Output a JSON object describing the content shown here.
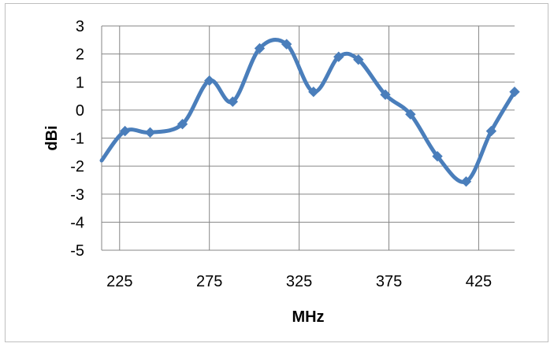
{
  "chart_data": {
    "type": "line",
    "title": "",
    "xlabel": "MHz",
    "ylabel": "dBi",
    "xlim": [
      215,
      445
    ],
    "ylim": [
      -5,
      3
    ],
    "x_ticks": [
      225,
      275,
      325,
      375,
      425
    ],
    "y_ticks": [
      3,
      2,
      1,
      0,
      -1,
      -2,
      -3,
      -4,
      -5
    ],
    "grid": "horizontal and vertical",
    "legend": "none",
    "smoothed": true,
    "marker": "diamond",
    "series_color": "#4a7ebb",
    "series": [
      {
        "x": [
          215,
          228,
          242,
          260,
          275,
          288,
          303,
          318,
          333,
          347,
          358,
          373,
          387,
          402,
          418,
          432,
          445
        ],
        "y": [
          -1.8,
          -0.75,
          -0.8,
          -0.5,
          1.05,
          0.3,
          2.2,
          2.35,
          0.65,
          1.9,
          1.8,
          0.55,
          -0.15,
          -1.65,
          -2.55,
          -0.75,
          0.65
        ]
      }
    ]
  }
}
